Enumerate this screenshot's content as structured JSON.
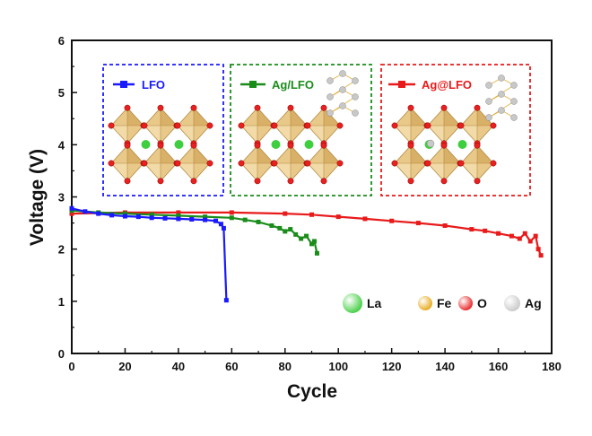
{
  "chart_data": {
    "type": "line",
    "title": "",
    "xlabel": "Cycle",
    "ylabel": "Voltage (V)",
    "xlim": [
      0,
      180
    ],
    "ylim": [
      0,
      6
    ],
    "x_ticks": [
      "0",
      "20",
      "40",
      "60",
      "80",
      "100",
      "120",
      "140",
      "160",
      "180"
    ],
    "y_ticks": [
      "0",
      "1",
      "2",
      "3",
      "4",
      "5",
      "6"
    ],
    "grid": false,
    "legend_placement": "inset boxes, top",
    "series": [
      {
        "name": "LFO",
        "color": "#1a1aff",
        "marker": "square",
        "points": [
          [
            0,
            2.78
          ],
          [
            5,
            2.72
          ],
          [
            10,
            2.68
          ],
          [
            15,
            2.65
          ],
          [
            20,
            2.63
          ],
          [
            25,
            2.62
          ],
          [
            30,
            2.6
          ],
          [
            35,
            2.59
          ],
          [
            40,
            2.58
          ],
          [
            45,
            2.57
          ],
          [
            50,
            2.56
          ],
          [
            54,
            2.54
          ],
          [
            56,
            2.48
          ],
          [
            57,
            2.4
          ],
          [
            58,
            1.02
          ]
        ]
      },
      {
        "name": "Ag/LFO",
        "color": "#1a8c1a",
        "marker": "square",
        "points": [
          [
            0,
            2.74
          ],
          [
            10,
            2.7
          ],
          [
            20,
            2.68
          ],
          [
            30,
            2.66
          ],
          [
            40,
            2.64
          ],
          [
            50,
            2.62
          ],
          [
            60,
            2.6
          ],
          [
            65,
            2.56
          ],
          [
            70,
            2.52
          ],
          [
            75,
            2.45
          ],
          [
            78,
            2.4
          ],
          [
            80,
            2.34
          ],
          [
            82,
            2.38
          ],
          [
            84,
            2.28
          ],
          [
            86,
            2.2
          ],
          [
            88,
            2.25
          ],
          [
            90,
            2.1
          ],
          [
            91,
            2.15
          ],
          [
            92,
            1.92
          ]
        ]
      },
      {
        "name": "Ag@LFO",
        "color": "#e81a1a",
        "marker": "square",
        "points": [
          [
            0,
            2.68
          ],
          [
            20,
            2.7
          ],
          [
            40,
            2.7
          ],
          [
            60,
            2.7
          ],
          [
            80,
            2.68
          ],
          [
            90,
            2.66
          ],
          [
            100,
            2.62
          ],
          [
            110,
            2.58
          ],
          [
            120,
            2.54
          ],
          [
            130,
            2.5
          ],
          [
            140,
            2.45
          ],
          [
            150,
            2.38
          ],
          [
            155,
            2.35
          ],
          [
            160,
            2.3
          ],
          [
            165,
            2.25
          ],
          [
            168,
            2.2
          ],
          [
            170,
            2.3
          ],
          [
            172,
            2.15
          ],
          [
            174,
            2.25
          ],
          [
            175,
            2.0
          ],
          [
            176,
            1.88
          ]
        ]
      }
    ],
    "element_legend": [
      {
        "label": "La",
        "color": "#3fce3f"
      },
      {
        "label": "Fe",
        "color": "#e6a817"
      },
      {
        "label": "O",
        "color": "#e82020"
      },
      {
        "label": "Ag",
        "color": "#c8c8c8"
      }
    ]
  }
}
